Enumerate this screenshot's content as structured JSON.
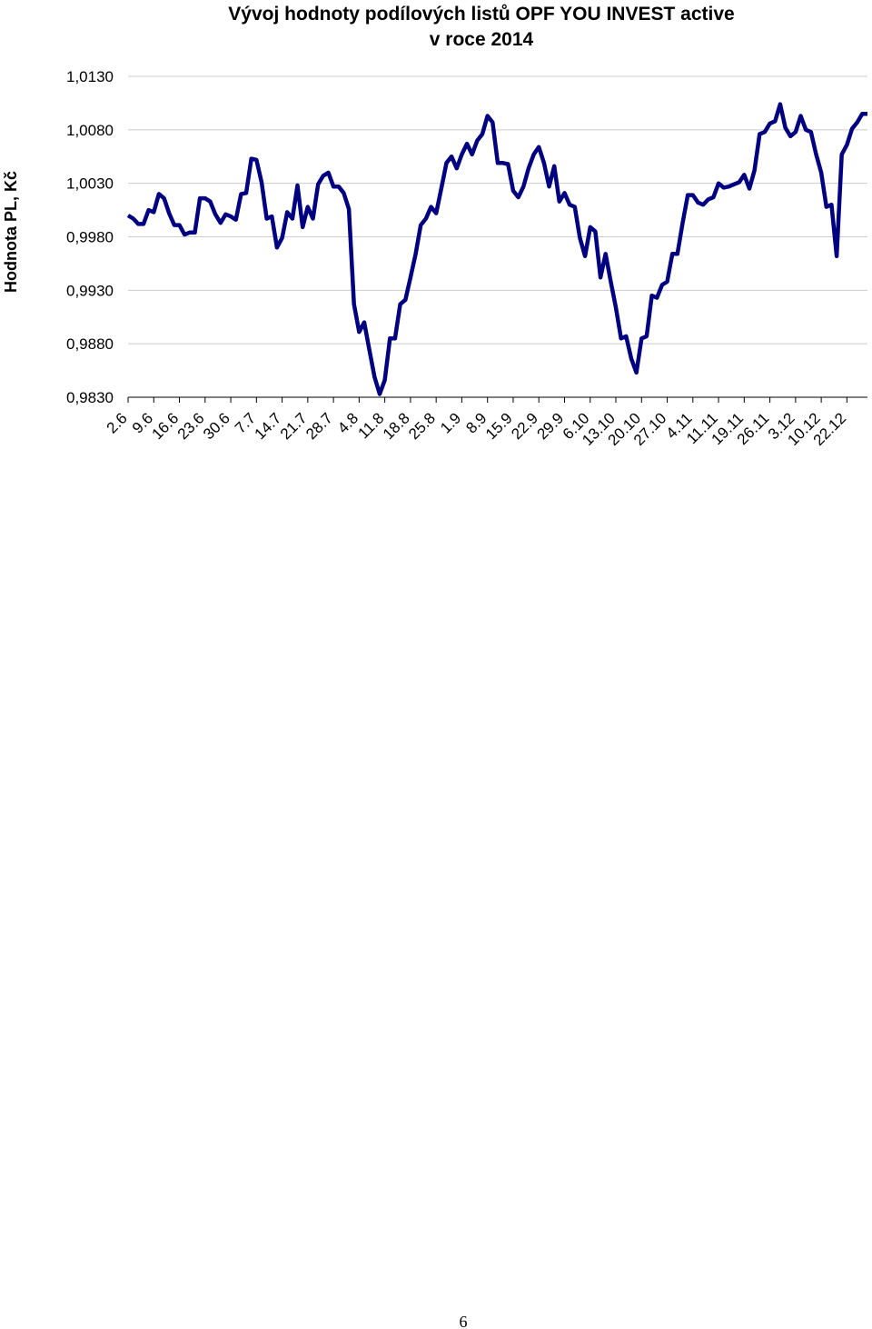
{
  "chart_data": {
    "type": "line",
    "title": [
      "Vývoj hodnoty podílových listů OPF YOU INVEST active",
      "v roce 2014"
    ],
    "ylabel": "Hodnota PL, Kč",
    "categories": [
      "2.6",
      null,
      null,
      null,
      null,
      "9.6",
      null,
      null,
      null,
      null,
      "16.6",
      null,
      null,
      null,
      null,
      "23.6",
      null,
      null,
      null,
      null,
      "30.6",
      null,
      null,
      null,
      null,
      "7.7",
      null,
      null,
      null,
      null,
      "14.7",
      null,
      null,
      null,
      null,
      "21.7",
      null,
      null,
      null,
      null,
      "28.7",
      null,
      null,
      null,
      null,
      "4.8",
      null,
      null,
      null,
      null,
      "11.8",
      null,
      null,
      null,
      null,
      "18.8",
      null,
      null,
      null,
      null,
      "25.8",
      null,
      null,
      null,
      null,
      "1.9",
      null,
      null,
      null,
      null,
      "8.9",
      null,
      null,
      null,
      null,
      "15.9",
      null,
      null,
      null,
      null,
      "22.9",
      null,
      null,
      null,
      null,
      "29.9",
      null,
      null,
      null,
      null,
      "6.10",
      null,
      null,
      null,
      null,
      "13.10",
      null,
      null,
      null,
      null,
      "20.10",
      null,
      null,
      null,
      null,
      "27.10",
      null,
      null,
      null,
      null,
      "4.11",
      null,
      null,
      null,
      null,
      "11.11",
      null,
      null,
      null,
      null,
      "19.11",
      null,
      null,
      null,
      null,
      "26.11",
      null,
      null,
      null,
      null,
      "3.12",
      null,
      null,
      null,
      null,
      "10.12",
      null,
      null,
      null,
      null,
      "22.12",
      null,
      null,
      null,
      null
    ],
    "values": [
      1.0,
      0.9997,
      0.9992,
      0.9992,
      1.0005,
      1.0003,
      1.002,
      1.0016,
      1.0002,
      0.9991,
      0.9991,
      0.9982,
      0.9984,
      0.9984,
      1.0016,
      1.0016,
      1.0013,
      1.0001,
      0.9993,
      1.0001,
      0.9999,
      0.9996,
      1.002,
      1.0021,
      1.0053,
      1.0052,
      1.0031,
      0.9997,
      0.9999,
      0.997,
      0.9979,
      1.0003,
      0.9997,
      1.0028,
      0.9989,
      1.0008,
      0.9997,
      1.0029,
      1.0037,
      1.004,
      1.0027,
      1.0027,
      1.0021,
      1.0006,
      0.9917,
      0.9891,
      0.99,
      0.9874,
      0.9849,
      0.9833,
      0.9846,
      0.9885,
      0.9885,
      0.9917,
      0.9921,
      0.9942,
      0.9964,
      0.9991,
      0.9997,
      1.0008,
      1.0002,
      1.0025,
      1.0049,
      1.0055,
      1.0044,
      1.0057,
      1.0067,
      1.0057,
      1.007,
      1.0076,
      1.0093,
      1.0087,
      1.0049,
      1.0049,
      1.0048,
      1.0023,
      1.0017,
      1.0027,
      1.0044,
      1.0057,
      1.0064,
      1.0049,
      1.0027,
      1.0046,
      1.0013,
      1.0021,
      1.001,
      1.0008,
      0.9979,
      0.9962,
      0.9989,
      0.9985,
      0.9942,
      0.9964,
      0.9938,
      0.9914,
      0.9885,
      0.9887,
      0.9866,
      0.9853,
      0.9885,
      0.9887,
      0.9925,
      0.9923,
      0.9935,
      0.9938,
      0.9964,
      0.9964,
      0.9993,
      1.0019,
      1.0019,
      1.0012,
      1.001,
      1.0015,
      1.0017,
      1.003,
      1.0026,
      1.0027,
      1.0029,
      1.0031,
      1.0038,
      1.0025,
      1.0042,
      1.0076,
      1.0078,
      1.0086,
      1.0088,
      1.0104,
      1.0082,
      1.0074,
      1.0078,
      1.0093,
      1.008,
      1.0078,
      1.0057,
      1.004,
      1.0008,
      1.001,
      0.9962,
      1.0057,
      1.0066,
      1.0081,
      1.0087,
      1.0095,
      1.0095
    ],
    "color": "#000080",
    "ylim": [
      0.983,
      1.013
    ],
    "yticks": [
      {
        "value": 0.983,
        "label": "0,9830"
      },
      {
        "value": 0.988,
        "label": "0,9880"
      },
      {
        "value": 0.993,
        "label": "0,9930"
      },
      {
        "value": 0.998,
        "label": "0,9980"
      },
      {
        "value": 1.003,
        "label": "1,0030"
      },
      {
        "value": 1.008,
        "label": "1,0080"
      },
      {
        "value": 1.013,
        "label": "1,0130"
      }
    ],
    "grid": true
  },
  "page_number": "6"
}
